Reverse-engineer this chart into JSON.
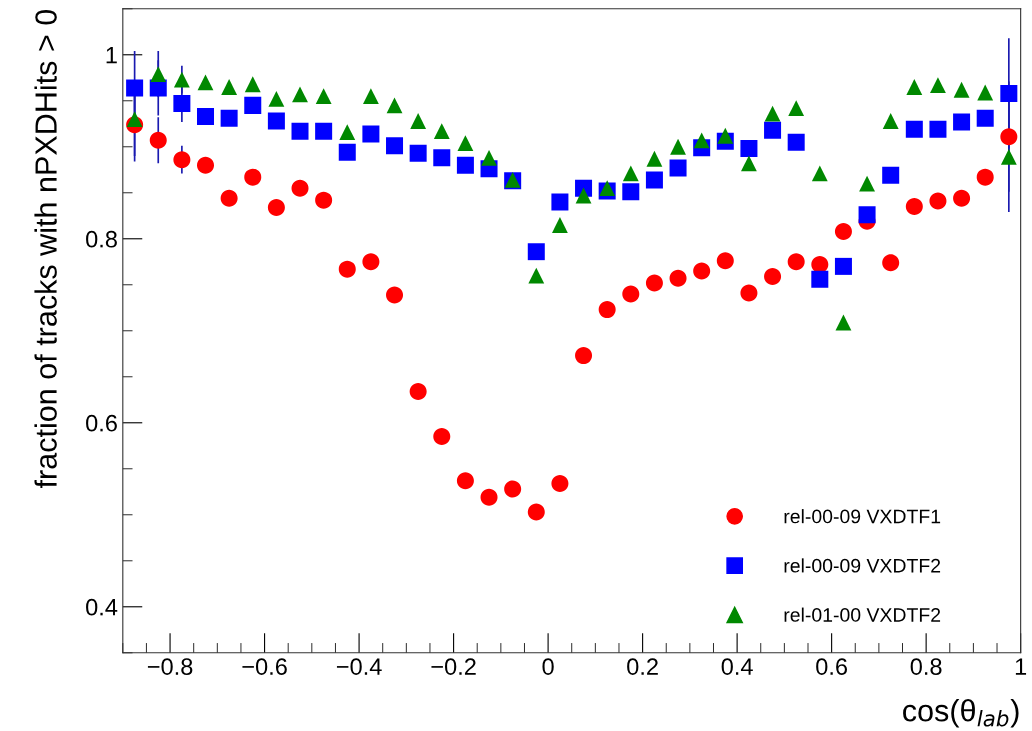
{
  "chart_data": {
    "type": "scatter",
    "xlabel": "cos(θ$_{lab}$)",
    "ylabel": "fraction of tracks with nPXDHits > 0",
    "x": [
      -0.875,
      -0.825,
      -0.775,
      -0.725,
      -0.675,
      -0.625,
      -0.575,
      -0.525,
      -0.475,
      -0.425,
      -0.375,
      -0.325,
      -0.275,
      -0.225,
      -0.175,
      -0.125,
      -0.075,
      -0.025,
      0.025,
      0.075,
      0.125,
      0.175,
      0.225,
      0.275,
      0.325,
      0.375,
      0.425,
      0.475,
      0.525,
      0.575,
      0.625,
      0.675,
      0.725,
      0.775,
      0.825,
      0.875,
      0.925,
      0.975
    ],
    "xlim": [
      -0.9,
      1.0
    ],
    "ylim": [
      0.35,
      1.05
    ],
    "xticks": [
      {
        "value": -0.8,
        "label": "−0.8"
      },
      {
        "value": -0.6,
        "label": "−0.6"
      },
      {
        "value": -0.4,
        "label": "−0.4"
      },
      {
        "value": -0.2,
        "label": "−0.2"
      },
      0,
      0.2,
      0.4,
      0.6,
      0.8,
      1
    ],
    "yticks": [
      0.4,
      0.6,
      0.8,
      1
    ],
    "grid": false,
    "legend": "bottom right",
    "series": [
      {
        "name": "rel-00-09 VXDTF1",
        "color": "#ff0000",
        "marker": "circle",
        "values": [
          0.924,
          0.907,
          0.886,
          0.88,
          0.844,
          0.867,
          0.834,
          0.855,
          0.842,
          0.767,
          0.775,
          0.739,
          0.634,
          0.585,
          0.537,
          0.519,
          0.528,
          0.503,
          0.534,
          0.673,
          0.723,
          0.74,
          0.752,
          0.757,
          0.765,
          0.776,
          0.741,
          0.759,
          0.775,
          0.772,
          0.808,
          0.819,
          0.774,
          0.835,
          0.841,
          0.844,
          0.867,
          0.911
        ],
        "errors": [
          0.04,
          0.025,
          0.015,
          null,
          null,
          null,
          null,
          null,
          null,
          null,
          null,
          null,
          null,
          null,
          null,
          null,
          null,
          null,
          null,
          null,
          null,
          null,
          null,
          null,
          null,
          null,
          null,
          null,
          null,
          null,
          null,
          null,
          null,
          null,
          null,
          null,
          null,
          0.06
        ]
      },
      {
        "name": "rel-00-09 VXDTF2",
        "color": "#0000ff",
        "marker": "square",
        "values": [
          0.964,
          0.964,
          0.947,
          0.933,
          0.931,
          0.945,
          0.928,
          0.917,
          0.917,
          0.894,
          0.914,
          0.901,
          0.893,
          0.888,
          0.88,
          0.876,
          0.863,
          0.786,
          0.84,
          0.855,
          0.852,
          0.851,
          0.864,
          0.877,
          0.899,
          0.906,
          0.898,
          0.918,
          0.905,
          0.756,
          0.77,
          0.826,
          0.869,
          0.919,
          0.919,
          0.927,
          0.931,
          0.958
        ],
        "errors": [
          0.04,
          0.03,
          0.02,
          null,
          null,
          null,
          null,
          null,
          null,
          null,
          null,
          null,
          null,
          null,
          null,
          null,
          null,
          null,
          null,
          null,
          null,
          null,
          null,
          null,
          null,
          null,
          null,
          null,
          null,
          null,
          null,
          null,
          null,
          null,
          null,
          null,
          null,
          0.06
        ]
      },
      {
        "name": "rel-01-00 VXDTF2",
        "color": "#008800",
        "marker": "triangle",
        "values": [
          0.93,
          0.979,
          0.973,
          0.97,
          0.965,
          0.968,
          0.952,
          0.957,
          0.955,
          0.916,
          0.955,
          0.945,
          0.928,
          0.917,
          0.904,
          0.888,
          0.864,
          0.76,
          0.815,
          0.847,
          0.855,
          0.871,
          0.887,
          0.9,
          0.907,
          0.912,
          0.882,
          0.936,
          0.942,
          0.871,
          0.709,
          0.86,
          0.928,
          0.965,
          0.967,
          0.962,
          0.959,
          0.889
        ],
        "errors": [
          0.04,
          0.025,
          0.015,
          null,
          null,
          null,
          null,
          null,
          null,
          null,
          null,
          null,
          null,
          null,
          null,
          null,
          null,
          null,
          null,
          null,
          null,
          null,
          null,
          null,
          null,
          null,
          null,
          null,
          null,
          null,
          null,
          null,
          null,
          null,
          null,
          null,
          null,
          0.06
        ]
      }
    ]
  }
}
